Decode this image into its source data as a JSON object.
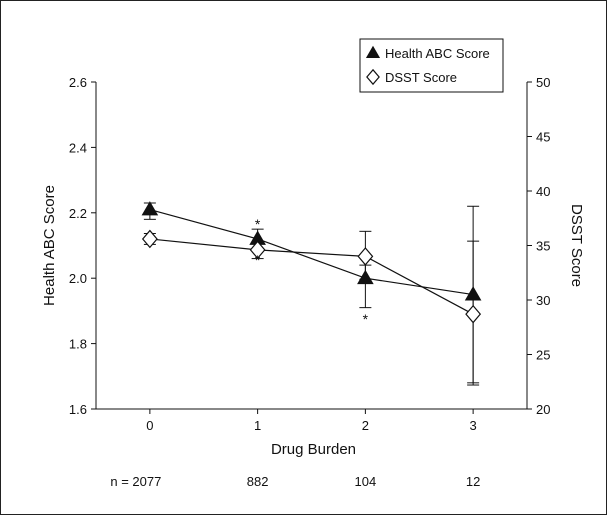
{
  "chart_data": {
    "type": "line",
    "xlabel": "Drug Burden",
    "ylabel_left": "Health ABC Score",
    "ylabel_right": "DSST Score",
    "x": [
      0,
      1,
      2,
      3
    ],
    "x_tick_labels": [
      "0",
      "1",
      "2",
      "3"
    ],
    "xlim": [
      -0.5,
      3.5
    ],
    "ylim_left": [
      1.6,
      2.6
    ],
    "ylim_right": [
      20,
      50
    ],
    "y_ticks_left": [
      "1.6",
      "1.8",
      "2.0",
      "2.2",
      "2.4",
      "2.6"
    ],
    "y_ticks_right": [
      "20",
      "25",
      "30",
      "35",
      "40",
      "45",
      "50"
    ],
    "n_labels": [
      "n = 2077",
      "882",
      "104",
      "12"
    ],
    "legend_position": "top-right",
    "series": [
      {
        "name": "Health ABC Score",
        "axis": "left",
        "marker": "filled-triangle",
        "values": [
          2.21,
          2.12,
          2.0,
          1.95
        ],
        "err_low": [
          2.18,
          2.09,
          1.91,
          1.68
        ],
        "err_high": [
          2.23,
          2.15,
          2.04,
          2.22
        ]
      },
      {
        "name": "DSST Score",
        "axis": "right",
        "marker": "open-diamond",
        "values": [
          35.6,
          34.6,
          34.0,
          28.7
        ],
        "err_low": [
          35.1,
          33.8,
          31.9,
          22.2
        ],
        "err_high": [
          36.1,
          35.2,
          36.3,
          35.4
        ]
      }
    ],
    "annotations": [
      {
        "text": "*",
        "x": 1,
        "axis": "left",
        "y": 2.175
      },
      {
        "text": "*",
        "x": 1,
        "axis": "left",
        "y": 2.065
      },
      {
        "text": "*",
        "x": 2,
        "axis": "left",
        "y": 1.885
      }
    ]
  }
}
